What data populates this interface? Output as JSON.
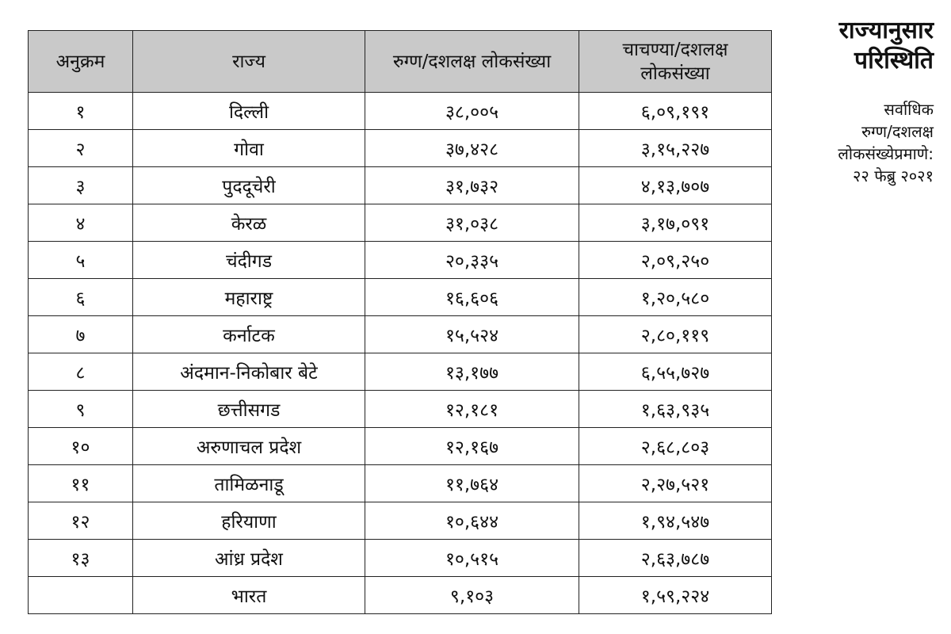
{
  "table": {
    "header": [
      "अनुक्रम",
      "राज्य",
      "रुग्ण/दशलक्ष लोकसंख्या",
      "चाचण्या/दशलक्ष\nलोकसंख्या"
    ],
    "rows": [
      [
        "१",
        "दिल्ली",
        "३८,००५",
        "६,०९,१९१"
      ],
      [
        "२",
        "गोवा",
        "३७,४२८",
        "३,१५,२२७"
      ],
      [
        "३",
        "पुददूचेरी",
        "३१,७३२",
        "४,१३,७०७"
      ],
      [
        "४",
        "केरळ",
        "३१,०३८",
        "३,१७,०९१"
      ],
      [
        "५",
        "चंदीगड",
        "२०,३३५",
        "२,०९,२५०"
      ],
      [
        "६",
        "महाराष्ट्र",
        "१६,६०६",
        "१,२०,५८०"
      ],
      [
        "७",
        "कर्नाटक",
        "१५,५२४",
        "२,८०,११९"
      ],
      [
        "८",
        "अंदमान-निकोबार बेटे",
        "१३,१७७",
        "६,५५,७२७"
      ],
      [
        "९",
        "छत्तीसगड",
        "१२,१८१",
        "१,६३,९३५"
      ],
      [
        "१०",
        "अरुणाचल प्रदेश",
        "१२,१६७",
        "२,६८,८०३"
      ],
      [
        "११",
        "तामिळनाडू",
        "११,७६४",
        "२,२७,५२१"
      ],
      [
        "१२",
        "हरियाणा",
        "१०,६४४",
        "१,९४,५४७"
      ],
      [
        "१३",
        "आंध्र प्रदेश",
        "१०,५१५",
        "२,६३,७८७"
      ],
      [
        null,
        "भारत",
        "९,१०३",
        "१,५९,२२४"
      ]
    ]
  },
  "side": {
    "title": [
      "राज्यानुसार",
      "परिस्थिति"
    ],
    "subtitle": [
      "सर्वाधिक",
      "रुग्ण/दशलक्ष",
      "लोकसंख्येप्रमाणे:",
      "२२ फेब्रु २०२१"
    ]
  }
}
